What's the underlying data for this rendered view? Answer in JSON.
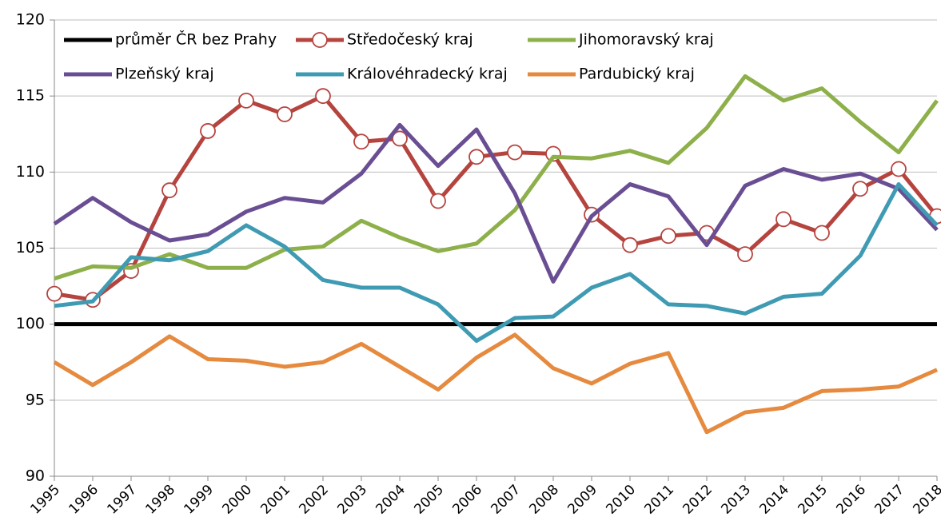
{
  "chart_data": {
    "type": "line",
    "categories": [
      "1995",
      "1996",
      "1997",
      "1998",
      "1999",
      "2000",
      "2001",
      "2002",
      "2003",
      "2004",
      "2005",
      "2006",
      "2007",
      "2008",
      "2009",
      "2010",
      "2011",
      "2012",
      "2013",
      "2014",
      "2015",
      "2016",
      "2017",
      "2018"
    ],
    "series": [
      {
        "name": "průměr ČR bez Prahy",
        "color": "#000000",
        "values": [
          100,
          100,
          100,
          100,
          100,
          100,
          100,
          100,
          100,
          100,
          100,
          100,
          100,
          100,
          100,
          100,
          100,
          100,
          100,
          100,
          100,
          100,
          100,
          100
        ]
      },
      {
        "name": "Středočeský kraj",
        "color": "#b5443f",
        "marker": "circle",
        "values": [
          102.0,
          101.6,
          103.5,
          108.8,
          112.7,
          114.7,
          113.8,
          115.0,
          112.0,
          112.2,
          108.1,
          111.0,
          111.3,
          111.2,
          107.2,
          105.2,
          105.8,
          106.0,
          104.6,
          106.9,
          106.0,
          108.9,
          110.2,
          107.1
        ]
      },
      {
        "name": "Jihomoravský kraj",
        "color": "#8db04a",
        "values": [
          103.0,
          103.8,
          103.7,
          104.6,
          103.7,
          103.7,
          104.9,
          105.1,
          106.8,
          105.7,
          104.8,
          105.3,
          107.5,
          111.0,
          110.9,
          111.4,
          110.6,
          112.9,
          116.3,
          114.7,
          115.5,
          113.3,
          111.3,
          114.7
        ]
      },
      {
        "name": "Plzeňský kraj",
        "color": "#6a4e93",
        "values": [
          106.6,
          108.3,
          106.7,
          105.5,
          105.9,
          107.4,
          108.3,
          108.0,
          109.9,
          113.1,
          110.4,
          112.8,
          108.6,
          102.8,
          107.1,
          109.2,
          108.4,
          105.2,
          109.1,
          110.2,
          109.5,
          109.9,
          108.9,
          106.2
        ]
      },
      {
        "name": "Královéhradecký kraj",
        "color": "#3f9bb3",
        "values": [
          101.2,
          101.5,
          104.4,
          104.2,
          104.8,
          106.5,
          105.1,
          102.9,
          102.4,
          102.4,
          101.3,
          98.9,
          100.4,
          100.5,
          102.4,
          103.3,
          101.3,
          101.2,
          100.7,
          101.8,
          102.0,
          104.5,
          109.2,
          106.5
        ]
      },
      {
        "name": "Pardubický kraj",
        "color": "#e58a3e",
        "values": [
          97.5,
          96.0,
          97.5,
          99.2,
          97.7,
          97.6,
          97.2,
          97.5,
          98.7,
          97.2,
          95.7,
          97.8,
          99.3,
          97.1,
          96.1,
          97.4,
          98.1,
          92.9,
          94.2,
          94.5,
          95.6,
          95.7,
          95.9,
          97.0
        ]
      }
    ],
    "ylim": [
      90,
      120
    ],
    "yticks": [
      90,
      95,
      100,
      105,
      110,
      115,
      120
    ],
    "grid": true,
    "legend": "top"
  }
}
